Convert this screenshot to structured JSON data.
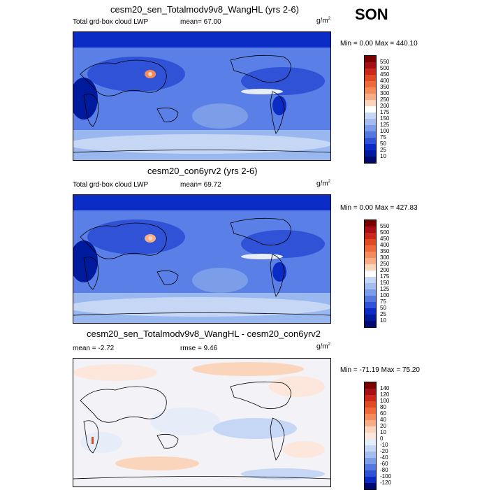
{
  "season": "SON",
  "panels": [
    {
      "title": "cesm20_sen_Totalmodv9v8_WangHL (yrs 2-6)",
      "left_label": "Total grd-box cloud LWP",
      "mid_label": "mean=  67.00",
      "units": "g/m",
      "units_sup": "2",
      "minmax": "Min =   0.00 Max = 440.10"
    },
    {
      "title": "cesm20_con6yrv2 (yrs 2-6)",
      "left_label": "Total grd-box cloud LWP",
      "mid_label": "mean=  69.72",
      "units": "g/m",
      "units_sup": "2",
      "minmax": "Min =   0.00 Max = 427.83"
    },
    {
      "title": "cesm20_sen_Totalmodv9v8_WangHL - cesm20_con6yrv2",
      "left_label": "mean =  -2.72",
      "mid_label": "rmse =   9.46",
      "units": "g/m",
      "units_sup": "2",
      "minmax": "Min = -71.19 Max =  75.20"
    }
  ],
  "colorbars": [
    {
      "labels": [
        "550",
        "500",
        "450",
        "400",
        "350",
        "300",
        "250",
        "200",
        "175",
        "150",
        "125",
        "100",
        "75",
        "50",
        "25",
        "10"
      ],
      "colors": [
        "#7a0000",
        "#a50f15",
        "#c9281a",
        "#de4a22",
        "#ef6a3a",
        "#f58a5a",
        "#f8ad86",
        "#fbd4bc",
        "#ffffff",
        "#c6d7f5",
        "#a3bdf0",
        "#7c9ee8",
        "#5578e0",
        "#2f52d6",
        "#0a2bc4",
        "#001a9e",
        "#000a6e"
      ]
    },
    {
      "labels": [
        "550",
        "500",
        "450",
        "400",
        "350",
        "300",
        "250",
        "200",
        "175",
        "150",
        "125",
        "100",
        "75",
        "50",
        "25",
        "10"
      ],
      "colors": [
        "#7a0000",
        "#a50f15",
        "#c9281a",
        "#de4a22",
        "#ef6a3a",
        "#f58a5a",
        "#f8ad86",
        "#fbd4bc",
        "#ffffff",
        "#c6d7f5",
        "#a3bdf0",
        "#7c9ee8",
        "#5578e0",
        "#2f52d6",
        "#0a2bc4",
        "#001a9e",
        "#000a6e"
      ]
    },
    {
      "labels": [
        "140",
        "120",
        "100",
        "80",
        "60",
        "40",
        "20",
        "10",
        "0",
        "-10",
        "-20",
        "-40",
        "-60",
        "-80",
        "-100",
        "-120"
      ],
      "colors": [
        "#7a0000",
        "#a50f15",
        "#c9281a",
        "#de4a22",
        "#ef6a3a",
        "#f58a5a",
        "#f8ad86",
        "#fbd4bc",
        "#fde7dc",
        "#e6edf9",
        "#c6d7f5",
        "#a3bdf0",
        "#7c9ee8",
        "#5578e0",
        "#2f52d6",
        "#0a2bc4",
        "#000a6e"
      ]
    }
  ]
}
